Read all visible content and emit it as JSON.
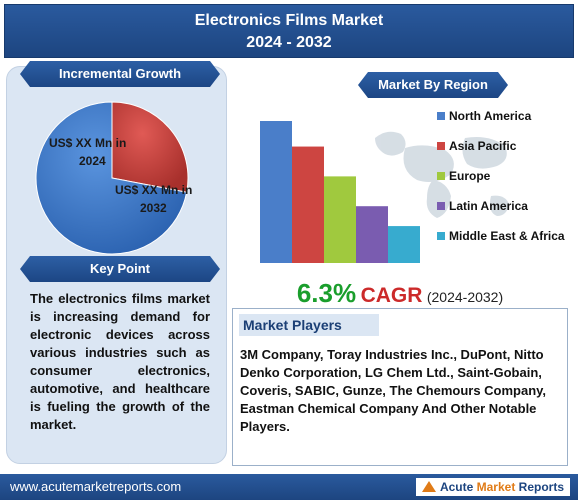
{
  "header": {
    "title_line1": "Electronics Films Market",
    "title_line2": "2024 - 2032"
  },
  "incremental_growth": {
    "label": "Incremental Growth",
    "pie_labels": [
      "US$ XX Mn in",
      "2024",
      "US$ XX Mn in",
      "2032"
    ]
  },
  "market_by_region": {
    "label": "Market By Region"
  },
  "key_point": {
    "label": "Key Point",
    "text": "The electronics films market is increasing demand for electronic devices across various industries such as consumer electronics, automotive, and healthcare is fueling the growth of the market."
  },
  "cagr": {
    "value": "6.3%",
    "label": "CAGR",
    "period": "(2024-2032)"
  },
  "market_players": {
    "title": "Market Players",
    "text": "3M Company, Toray Industries Inc., DuPont, Nitto Denko Corporation, LG Chem Ltd., Saint-Gobain, Coveris, SABIC, Gunze, The Chemours Company, Eastman Chemical Company And Other Notable Players."
  },
  "footer": {
    "url": "www.acutemarketreports.com",
    "logo_part1": "Acute",
    "logo_part2": "Market",
    "logo_part3": "Reports"
  },
  "colors": {
    "navy": "#1d4580",
    "green": "#1a9e2c",
    "red": "#cc2a2a"
  },
  "chart_data": [
    {
      "type": "pie",
      "labels": [
        "US$ XX Mn in 2024",
        "US$ XX Mn in 2032"
      ],
      "values": [
        28,
        72
      ],
      "colors": [
        "#c83a35",
        "#3b78c9"
      ]
    },
    {
      "type": "bar",
      "categories": [
        "North America",
        "Asia Pacific",
        "Europe",
        "Latin America",
        "Middle East & Africa"
      ],
      "values": [
        100,
        82,
        61,
        40,
        26
      ],
      "colors": [
        "#4a7ec9",
        "#cd4541",
        "#a0c93e",
        "#7a5cb0",
        "#37abcf"
      ],
      "legend_position": "right"
    }
  ]
}
